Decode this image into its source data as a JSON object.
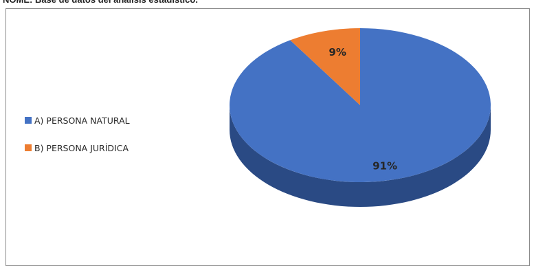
{
  "page": {
    "heading": "NOME: Base de datos del análisis estadístico."
  },
  "chart_data": {
    "type": "pie",
    "style": "3d",
    "start_angle": "top, clockwise",
    "slices": [
      {
        "label": "A) PERSONA NATURAL",
        "value": 91,
        "data_label": "91%",
        "color": "#4472C4",
        "side_color": "#2A4A84"
      },
      {
        "label": "B) PERSONA JURÍDICA",
        "value": 9,
        "data_label": "9%",
        "color": "#ED7D31",
        "side_color": "#A9561F"
      }
    ],
    "legend_position": "left"
  }
}
